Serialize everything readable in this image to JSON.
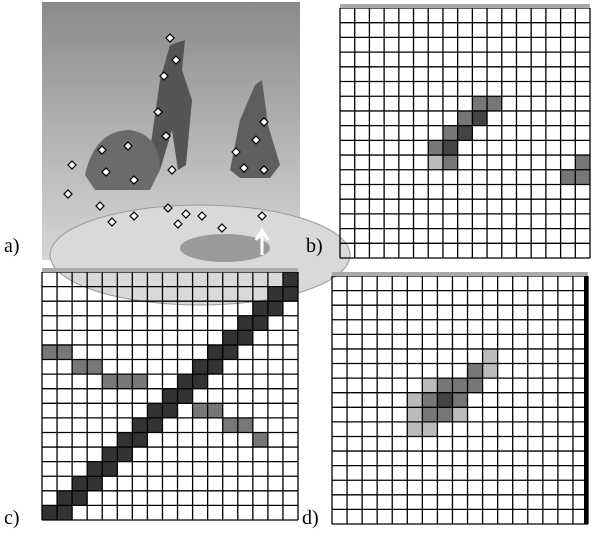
{
  "panels": {
    "a": {
      "label": "a)"
    },
    "b": {
      "label": "b)"
    },
    "c": {
      "label": "c)"
    },
    "d": {
      "label": "d)"
    }
  }
}
